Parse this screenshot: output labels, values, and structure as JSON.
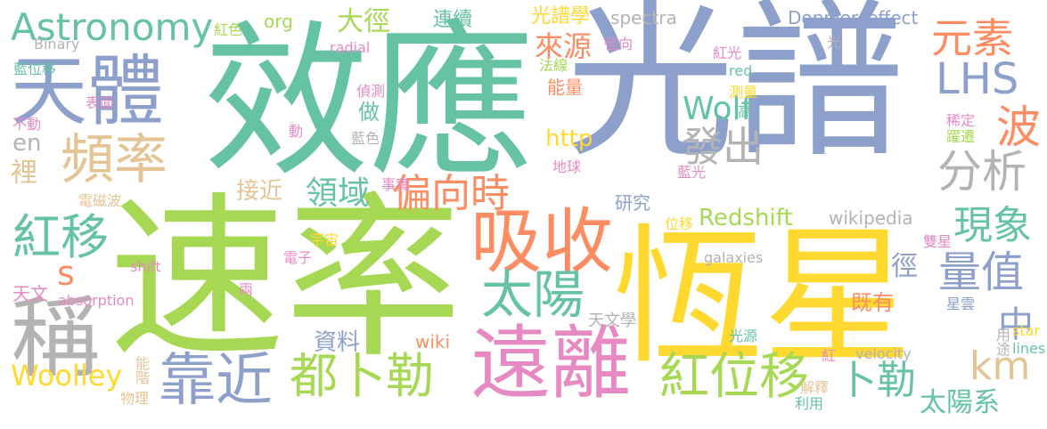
{
  "palette": {
    "teal": "#66c2a5",
    "orange": "#fc8d62",
    "blue": "#8da0cb",
    "pink": "#e78ac3",
    "green": "#a6d854",
    "yellow": "#ffd92f",
    "tan": "#e5c494",
    "gray": "#b3b3b3"
  },
  "words": [
    {
      "text": "光譜",
      "color": "blue"
    },
    {
      "text": "速率",
      "color": "green"
    },
    {
      "text": "效應",
      "color": "teal"
    },
    {
      "text": "恆星",
      "color": "yellow"
    },
    {
      "text": "天體",
      "color": "blue"
    },
    {
      "text": "遠離",
      "color": "pink"
    },
    {
      "text": "吸收",
      "color": "orange"
    },
    {
      "text": "稱",
      "color": "gray"
    },
    {
      "text": "頻率",
      "color": "tan"
    },
    {
      "text": "靠近",
      "color": "blue"
    },
    {
      "text": "都卜勒",
      "color": "green"
    },
    {
      "text": "紅位移",
      "color": "green"
    },
    {
      "text": "Astronomy",
      "color": "teal"
    },
    {
      "text": "紅移",
      "color": "teal"
    },
    {
      "text": "太陽",
      "color": "teal"
    },
    {
      "text": "元素",
      "color": "orange"
    },
    {
      "text": "LHS",
      "color": "blue"
    },
    {
      "text": "波",
      "color": "orange"
    },
    {
      "text": "分析",
      "color": "gray"
    },
    {
      "text": "偏向時",
      "color": "orange"
    },
    {
      "text": "領域",
      "color": "teal"
    },
    {
      "text": "發出",
      "color": "gray"
    },
    {
      "text": "現象",
      "color": "teal"
    },
    {
      "text": "量值",
      "color": "blue"
    },
    {
      "text": "km",
      "color": "tan"
    },
    {
      "text": "卜勒",
      "color": "teal"
    },
    {
      "text": "太陽系",
      "color": "teal"
    },
    {
      "text": "Woolley",
      "color": "yellow"
    },
    {
      "text": "Redshift",
      "color": "green"
    },
    {
      "text": "Wolf",
      "color": "teal"
    },
    {
      "text": "中",
      "color": "blue"
    },
    {
      "text": "s",
      "color": "orange"
    },
    {
      "text": "大徑",
      "color": "green"
    },
    {
      "text": "來源",
      "color": "orange"
    },
    {
      "text": "連續",
      "color": "teal"
    },
    {
      "text": "光譜學",
      "color": "yellow"
    },
    {
      "text": "接近",
      "color": "tan"
    },
    {
      "text": "http",
      "color": "yellow"
    },
    {
      "text": "wikipedia",
      "color": "gray"
    },
    {
      "text": "資料",
      "color": "blue"
    },
    {
      "text": "裡",
      "color": "tan"
    },
    {
      "text": "en",
      "color": "gray"
    },
    {
      "text": "org",
      "color": "green"
    },
    {
      "text": "spectra",
      "color": "gray"
    },
    {
      "text": "Doppler_effect",
      "color": "blue"
    },
    {
      "text": "wiki",
      "color": "orange"
    },
    {
      "text": "既有",
      "color": "orange"
    },
    {
      "text": "徑",
      "color": "blue"
    },
    {
      "text": "能量",
      "color": "orange"
    },
    {
      "text": "做",
      "color": "teal"
    },
    {
      "text": "研究",
      "color": "blue"
    },
    {
      "text": "能階",
      "color": "tan"
    },
    {
      "text": "radial",
      "color": "pink"
    },
    {
      "text": "Binary",
      "color": "gray"
    },
    {
      "text": "藍位移",
      "color": "teal"
    },
    {
      "text": "紅色",
      "color": "green"
    },
    {
      "text": "天文",
      "color": "pink"
    },
    {
      "text": "天文學",
      "color": "gray"
    },
    {
      "text": "法線",
      "color": "green"
    },
    {
      "text": "偵測",
      "color": "pink"
    },
    {
      "text": "藍色",
      "color": "gray"
    },
    {
      "text": "動",
      "color": "pink"
    },
    {
      "text": "徑向",
      "color": "pink"
    },
    {
      "text": "紅光",
      "color": "pink"
    },
    {
      "text": "red",
      "color": "teal"
    },
    {
      "text": "測量",
      "color": "yellow"
    },
    {
      "text": "高",
      "color": "teal"
    },
    {
      "text": "稀定",
      "color": "pink"
    },
    {
      "text": "躍遷",
      "color": "green"
    },
    {
      "text": "地球",
      "color": "pink"
    },
    {
      "text": "藍光",
      "color": "pink"
    },
    {
      "text": "事實",
      "color": "pink"
    },
    {
      "text": "位移",
      "color": "yellow"
    },
    {
      "text": "雙星",
      "color": "pink"
    },
    {
      "text": "galaxies",
      "color": "gray"
    },
    {
      "text": "星雲",
      "color": "blue"
    },
    {
      "text": "用途",
      "color": "gray"
    },
    {
      "text": "star",
      "color": "yellow"
    },
    {
      "text": "lines",
      "color": "teal"
    },
    {
      "text": "velocity",
      "color": "gray"
    },
    {
      "text": "解釋",
      "color": "tan"
    },
    {
      "text": "利用",
      "color": "teal"
    },
    {
      "text": "紅",
      "color": "pink"
    },
    {
      "text": "光源",
      "color": "teal"
    },
    {
      "text": "宇宙",
      "color": "yellow"
    },
    {
      "text": "電子",
      "color": "pink"
    },
    {
      "text": "兩",
      "color": "pink"
    },
    {
      "text": "absorption",
      "color": "pink"
    },
    {
      "text": "shift",
      "color": "pink"
    },
    {
      "text": "電磁波",
      "color": "tan"
    },
    {
      "text": "表面",
      "color": "pink"
    },
    {
      "text": "不動",
      "color": "pink"
    },
    {
      "text": "物理",
      "color": "tan"
    },
    {
      "text": "光",
      "color": "gray"
    }
  ]
}
